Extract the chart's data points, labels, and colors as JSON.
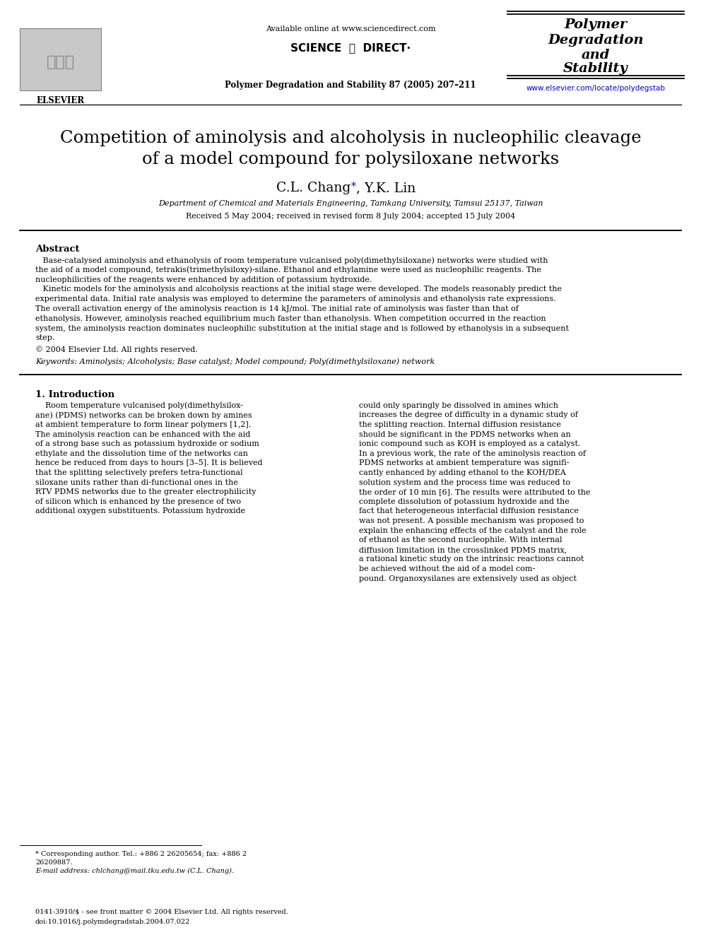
{
  "bg_color": "#ffffff",
  "title_line1": "Competition of aminolysis and alcoholysis in nucleophilic cleavage",
  "title_line2": "of a model compound for polysiloxane networks",
  "affiliation": "Department of Chemical and Materials Engineering, Tamkang University, Tamsui 25137, Taiwan",
  "received": "Received 5 May 2004; received in revised form 8 July 2004; accepted 15 July 2004",
  "available_online": "Available online at www.sciencedirect.com",
  "journal_cite": "Polymer Degradation and Stability 87 (2005) 207–211",
  "journal_right": [
    "Polymer",
    "Degradation",
    "and",
    "Stability"
  ],
  "journal_url": "www.elsevier.com/locate/polydegstab",
  "abstract_title": "Abstract",
  "copyright": "© 2004 Elsevier Ltd. All rights reserved.",
  "keywords": "Keywords: Aminolysis; Alcoholysis; Base catalyst; Model compound; Poly(dimethylsiloxane) network",
  "section1_title": "1. Introduction",
  "abstract_lines": [
    "   Base-catalysed aminolysis and ethanolysis of room temperature vulcanised poly(dimethylsiloxane) networks were studied with",
    "the aid of a model compound, tetrakis(trimethylsiloxy)-silane. Ethanol and ethylamine were used as nucleophilic reagents. The",
    "nucleophilicities of the reagents were enhanced by addition of potassium hydroxide.",
    "   Kinetic models for the aminolysis and alcoholysis reactions at the initial stage were developed. The models reasonably predict the",
    "experimental data. Initial rate analysis was employed to determine the parameters of aminolysis and ethanolysis rate expressions.",
    "The overall activation energy of the aminolysis reaction is 14 kJ/mol. The initial rate of aminolysis was faster than that of",
    "ethanolysis. However, aminolysis reached equilibrium much faster than ethanolysis. When competition occurred in the reaction",
    "system, the aminolysis reaction dominates nucleophilic substitution at the initial stage and is followed by ethanolysis in a subsequent",
    "step."
  ],
  "col1_lines": [
    "    Room temperature vulcanised poly(dimethylsilox-",
    "ane) (PDMS) networks can be broken down by amines",
    "at ambient temperature to form linear polymers [1,2].",
    "The aminolysis reaction can be enhanced with the aid",
    "of a strong base such as potassium hydroxide or sodium",
    "ethylate and the dissolution time of the networks can",
    "hence be reduced from days to hours [3–5]. It is believed",
    "that the splitting selectively prefers tetra-functional",
    "siloxane units rather than di-functional ones in the",
    "RTV PDMS networks due to the greater electrophilicity",
    "of silicon which is enhanced by the presence of two",
    "additional oxygen substituents. Potassium hydroxide"
  ],
  "col2_lines": [
    "could only sparingly be dissolved in amines which",
    "increases the degree of difficulty in a dynamic study of",
    "the splitting reaction. Internal diffusion resistance",
    "should be significant in the PDMS networks when an",
    "ionic compound such as KOH is employed as a catalyst.",
    "In a previous work, the rate of the aminolysis reaction of",
    "PDMS networks at ambient temperature was signifi-",
    "cantly enhanced by adding ethanol to the KOH/DEA",
    "solution system and the process time was reduced to",
    "the order of 10 min [6]. The results were attributed to the",
    "complete dissolution of potassium hydroxide and the",
    "fact that heterogeneous interfacial diffusion resistance",
    "was not present. A possible mechanism was proposed to",
    "explain the enhancing effects of the catalyst and the role",
    "of ethanol as the second nucleophile. With internal",
    "diffusion limitation in the crosslinked PDMS matrix,",
    "a rational kinetic study on the intrinsic reactions cannot",
    "be achieved without the aid of a model com-",
    "pound. Organoxysilanes are extensively used as object"
  ],
  "footnote1a": "* Corresponding author. Tel.: +886 2 26205654; fax: +886 2",
  "footnote1b": "26209887.",
  "footnote2": "E-mail address: chlchang@mail.tku.edu.tw (C.L. Chang).",
  "footer1": "0141-3910/$ - see front matter © 2004 Elsevier Ltd. All rights reserved.",
  "footer2": "doi:10.1016/j.polymdegradstab.2004.07.022"
}
